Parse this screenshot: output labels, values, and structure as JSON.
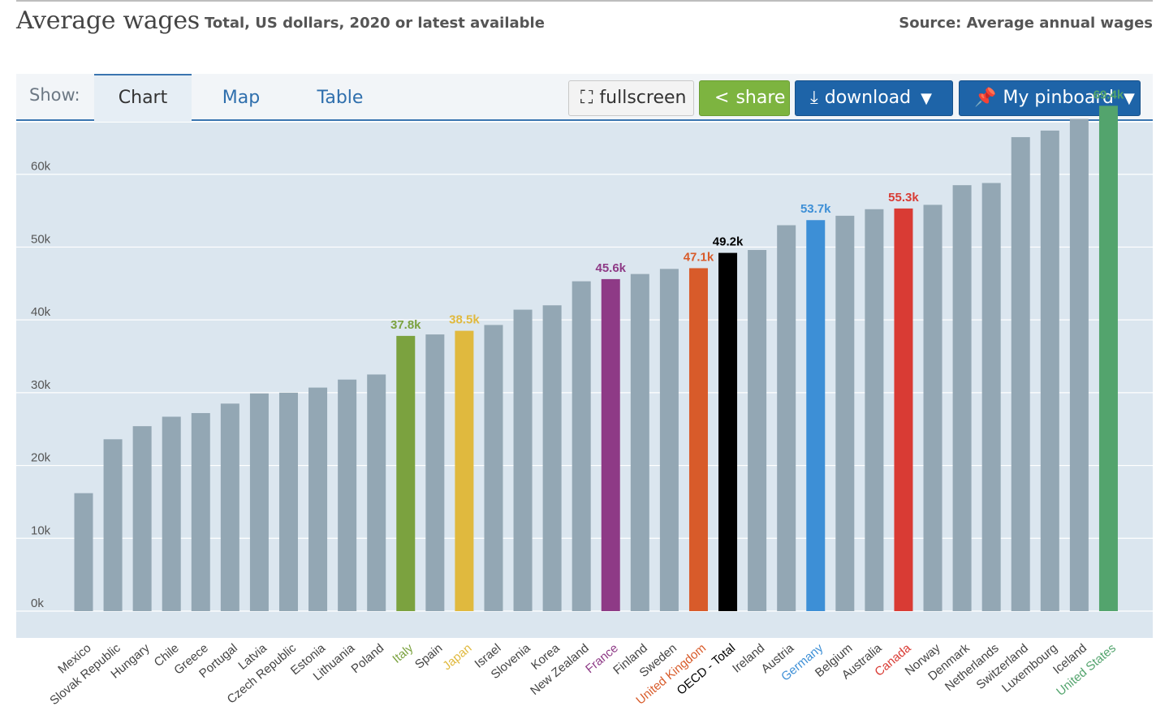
{
  "header": {
    "title": "Average wages",
    "subtitle": "Total, US dollars, 2020 or latest available",
    "source": "Source: Average annual wages"
  },
  "toolbar": {
    "show_label": "Show:",
    "tabs": [
      {
        "label": "Chart",
        "active": true
      },
      {
        "label": "Map",
        "active": false
      },
      {
        "label": "Table",
        "active": false
      }
    ],
    "fullscreen_label": "fullscreen",
    "share_label": "share",
    "download_label": "download",
    "pinboard_label": "My pinboard",
    "caret": "▼",
    "fullscreen_icon": "⛶",
    "share_icon": "<",
    "download_icon": "⤓",
    "pin_icon": "📌"
  },
  "chart_data": {
    "type": "bar",
    "title": "Average wages",
    "subtitle": "Total, US dollars, 2020 or latest available",
    "xlabel": "",
    "ylabel": "",
    "ylim": [
      0,
      70000
    ],
    "yticks": [
      0,
      10000,
      20000,
      30000,
      40000,
      50000,
      60000
    ],
    "ytick_labels": [
      "0k",
      "10k",
      "20k",
      "30k",
      "40k",
      "50k",
      "60k"
    ],
    "grid": true,
    "default_color": "#93a7b4",
    "categories": [
      "Mexico",
      "Slovak Republic",
      "Hungary",
      "Chile",
      "Greece",
      "Portugal",
      "Latvia",
      "Czech Republic",
      "Estonia",
      "Lithuania",
      "Poland",
      "Italy",
      "Spain",
      "Japan",
      "Israel",
      "Slovenia",
      "Korea",
      "New Zealand",
      "France",
      "Finland",
      "Sweden",
      "United Kingdom",
      "OECD - Total",
      "Ireland",
      "Austria",
      "Germany",
      "Belgium",
      "Australia",
      "Canada",
      "Norway",
      "Denmark",
      "Netherlands",
      "Switzerland",
      "Luxembourg",
      "Iceland",
      "United States"
    ],
    "values": [
      16200,
      23600,
      25400,
      26700,
      27200,
      28500,
      29900,
      30000,
      30700,
      31800,
      32500,
      37800,
      38000,
      38500,
      39300,
      41400,
      42000,
      45300,
      45600,
      46300,
      47000,
      47100,
      49200,
      49600,
      53000,
      53700,
      54300,
      55200,
      55300,
      55800,
      58500,
      58800,
      65100,
      66000,
      67600,
      69400
    ],
    "highlights": [
      {
        "category": "Italy",
        "color": "#7ba23f",
        "label": "37.8k"
      },
      {
        "category": "Japan",
        "color": "#e0b93e",
        "label": "38.5k"
      },
      {
        "category": "France",
        "color": "#8e3a86",
        "label": "45.6k"
      },
      {
        "category": "United Kingdom",
        "color": "#d85b2a",
        "label": "47.1k"
      },
      {
        "category": "OECD - Total",
        "color": "#000000",
        "label": "49.2k"
      },
      {
        "category": "Germany",
        "color": "#3d8fd6",
        "label": "53.7k"
      },
      {
        "category": "Canada",
        "color": "#d93b34",
        "label": "55.3k"
      },
      {
        "category": "United States",
        "color": "#53a46d",
        "label": "69.4k"
      }
    ]
  }
}
